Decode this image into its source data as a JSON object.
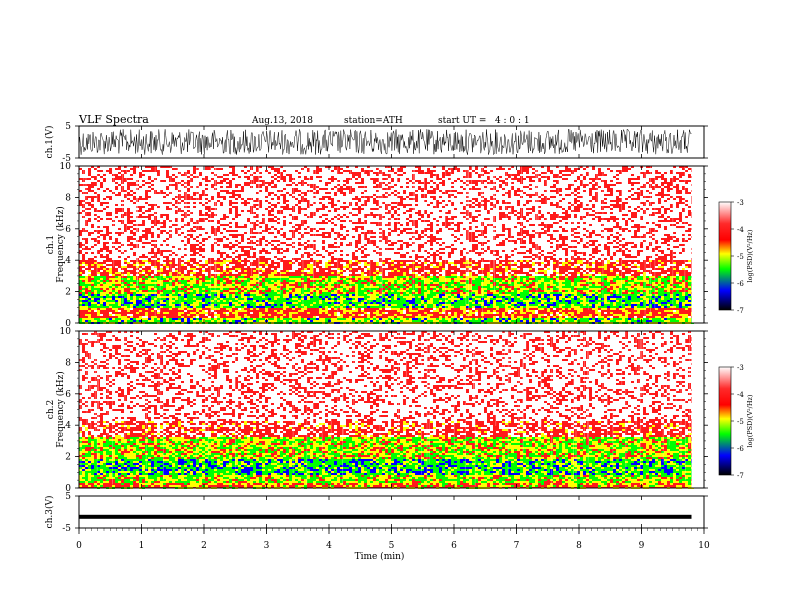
{
  "header": {
    "title": "VLF Spectra",
    "date": "Aug.13, 2018",
    "station": "station=ATH",
    "start": "start UT =   4 : 0 : 1"
  },
  "colorbar": {
    "label": "log(PSD)(V²/Hz)",
    "ticks": [
      "-3",
      "-4",
      "-5",
      "-6",
      "-7"
    ],
    "stops": [
      "#ffffff",
      "#ff0000",
      "#ffff00",
      "#00ff00",
      "#0000ff",
      "#000000"
    ]
  },
  "chart_data": [
    {
      "type": "line",
      "panel": "ch1-waveform",
      "ylabel": "ch.1(V)",
      "yticks": [
        "5",
        "-5"
      ],
      "ylim": [
        -5,
        5
      ],
      "xlim": [
        0,
        10
      ],
      "amplitude_range": [
        -4,
        4
      ],
      "color": "#000000"
    },
    {
      "type": "heatmap",
      "panel": "ch1-spectrogram",
      "ylabel": [
        "ch.1",
        "Frequency (kHz)"
      ],
      "yticks": [
        "0",
        "2",
        "4",
        "6",
        "8",
        "10"
      ],
      "ylim": [
        0,
        10
      ],
      "xlim": [
        0,
        10
      ],
      "data_end_min": 9.8,
      "bands": [
        {
          "from": 0.0,
          "to": 0.3,
          "level": 0.55
        },
        {
          "from": 0.3,
          "to": 1.0,
          "level": 0.35
        },
        {
          "from": 1.0,
          "to": 1.8,
          "level": 0.58
        },
        {
          "from": 1.8,
          "to": 3.0,
          "level": 0.48
        },
        {
          "from": 3.0,
          "to": 4.0,
          "level": 0.3
        },
        {
          "from": 4.0,
          "to": 10.0,
          "level": 0.18
        }
      ],
      "colorscale": {
        "log_psd_min": -7,
        "log_psd_max": -3
      }
    },
    {
      "type": "heatmap",
      "panel": "ch2-spectrogram",
      "ylabel": [
        "ch.2",
        "Frequency (kHz)"
      ],
      "yticks": [
        "0",
        "2",
        "4",
        "6",
        "8",
        "10"
      ],
      "ylim": [
        0,
        10
      ],
      "xlim": [
        0,
        10
      ],
      "data_end_min": 9.8,
      "bands": [
        {
          "from": 0.0,
          "to": 0.3,
          "level": 0.4
        },
        {
          "from": 0.3,
          "to": 0.8,
          "level": 0.5
        },
        {
          "from": 0.8,
          "to": 1.9,
          "level": 0.6
        },
        {
          "from": 1.9,
          "to": 3.3,
          "level": 0.48
        },
        {
          "from": 3.3,
          "to": 4.3,
          "level": 0.28
        },
        {
          "from": 4.3,
          "to": 10.0,
          "level": 0.17
        }
      ],
      "colorscale": {
        "log_psd_min": -7,
        "log_psd_max": -3
      }
    },
    {
      "type": "line",
      "panel": "ch3-waveform",
      "ylabel": "ch.3(V)",
      "yticks": [
        "5",
        "-5"
      ],
      "ylim": [
        -5,
        5
      ],
      "xlim": [
        0,
        10
      ],
      "value": -1.5,
      "color": "#000000"
    }
  ],
  "xaxis": {
    "label": "Time (min)",
    "ticks": [
      "0",
      "1",
      "2",
      "3",
      "4",
      "5",
      "6",
      "7",
      "8",
      "9",
      "10"
    ]
  }
}
